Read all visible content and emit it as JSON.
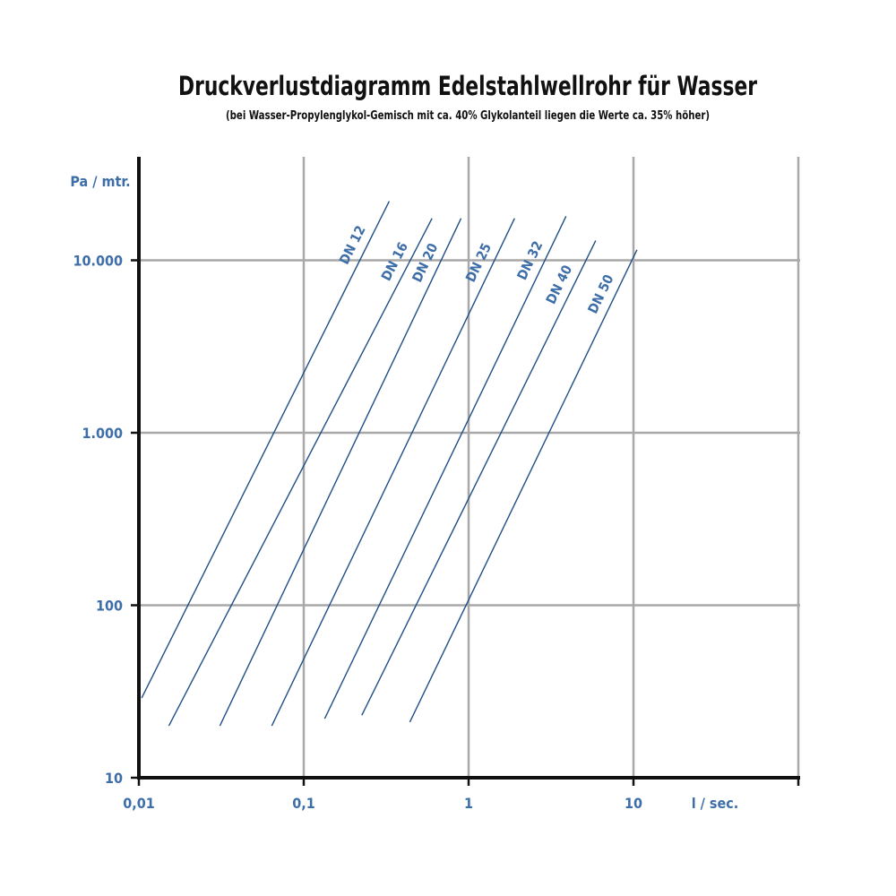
{
  "colors": {
    "axis_text": "#3d6ea8",
    "series_line": "#1f4f86",
    "grid": "#a8a8a8",
    "axis": "#111111",
    "title": "#111111"
  },
  "chart_data": {
    "type": "line",
    "title": "Druckverlustdiagramm Edelstahlwellrohr für Wasser",
    "subtitle": "(bei Wasser-Propylenglykol-Gemisch mit ca. 40% Glykolanteil liegen die Werte ca. 35% höher)",
    "xlabel": "l / sec.",
    "ylabel": "Pa / mtr.",
    "x_scale": "log",
    "y_scale": "log",
    "xlim": [
      0.01,
      100
    ],
    "ylim": [
      10,
      40000
    ],
    "grid": true,
    "x_ticks": [
      {
        "value": 0.01,
        "label": "0,01"
      },
      {
        "value": 0.1,
        "label": "0,1"
      },
      {
        "value": 1,
        "label": "1"
      },
      {
        "value": 10,
        "label": "10"
      },
      {
        "value": 100,
        "label": ""
      }
    ],
    "y_ticks": [
      {
        "value": 10,
        "label": "10"
      },
      {
        "value": 100,
        "label": "100"
      },
      {
        "value": 1000,
        "label": "1.000"
      },
      {
        "value": 10000,
        "label": "10.000"
      }
    ],
    "series": [
      {
        "name": "DN 12",
        "x": [
          0.0104,
          0.33
        ],
        "y": [
          29,
          22000
        ]
      },
      {
        "name": "DN 16",
        "x": [
          0.0152,
          0.6
        ],
        "y": [
          20,
          17500
        ]
      },
      {
        "name": "DN 20",
        "x": [
          0.031,
          0.9
        ],
        "y": [
          20,
          17500
        ]
      },
      {
        "name": "DN 25",
        "x": [
          0.064,
          1.9
        ],
        "y": [
          20,
          17500
        ]
      },
      {
        "name": "DN 32",
        "x": [
          0.134,
          3.9
        ],
        "y": [
          22,
          18000
        ]
      },
      {
        "name": "DN 40",
        "x": [
          0.225,
          5.9
        ],
        "y": [
          23,
          13000
        ]
      },
      {
        "name": "DN 50",
        "x": [
          0.44,
          10.5
        ],
        "y": [
          21,
          11500
        ]
      }
    ]
  }
}
